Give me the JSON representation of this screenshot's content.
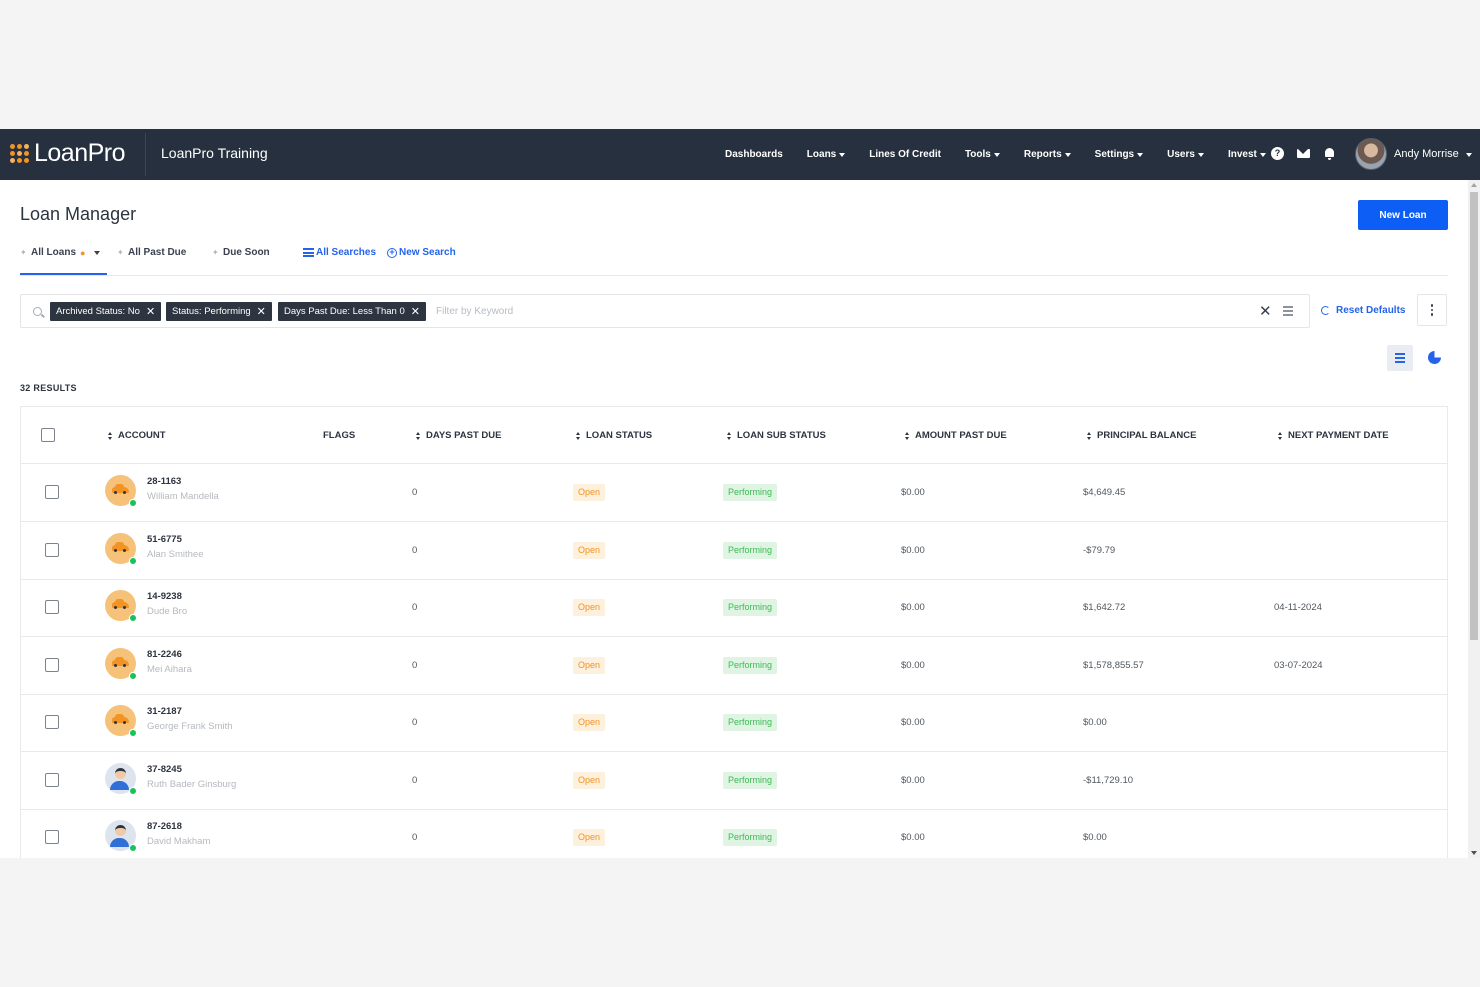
{
  "topbar": {
    "logo_text": "LoanPro",
    "tenant": "LoanPro Training",
    "nav": [
      {
        "label": "Dashboards",
        "caret": false
      },
      {
        "label": "Loans",
        "caret": true
      },
      {
        "label": "Lines Of Credit",
        "caret": false
      },
      {
        "label": "Tools",
        "caret": true
      },
      {
        "label": "Reports",
        "caret": true
      },
      {
        "label": "Settings",
        "caret": true
      },
      {
        "label": "Users",
        "caret": true
      },
      {
        "label": "Invest",
        "caret": true
      }
    ],
    "help_glyph": "?",
    "user_name": "Andy Morrise"
  },
  "page": {
    "title": "Loan Manager",
    "new_loan_label": "New Loan",
    "tabs": {
      "all_loans": "All Loans",
      "all_past_due": "All Past Due",
      "due_soon": "Due Soon",
      "all_searches": "All Searches",
      "new_search": "New Search"
    },
    "filters": {
      "chips": [
        "Archived Status: No",
        "Status: Performing",
        "Days Past Due: Less Than 0"
      ],
      "keyword_placeholder": "Filter by Keyword",
      "reset_label": "Reset Defaults"
    },
    "results_label": "32 RESULTS"
  },
  "table": {
    "columns": {
      "account": "ACCOUNT",
      "flags": "FLAGS",
      "days_past_due": "DAYS PAST DUE",
      "loan_status": "LOAN STATUS",
      "loan_sub_status": "LOAN SUB STATUS",
      "amount_past_due": "AMOUNT PAST DUE",
      "principal_balance": "PRINCIPAL BALANCE",
      "next_payment_date": "NEXT PAYMENT DATE"
    },
    "rows": [
      {
        "account": "28-1163",
        "name": "William Mandella",
        "avatar": "car",
        "days_past_due": "0",
        "status": "Open",
        "sub_status": "Performing",
        "amount_past_due": "$0.00",
        "principal_balance": "$4,649.45",
        "next_payment_date": ""
      },
      {
        "account": "51-6775",
        "name": "Alan Smithee",
        "avatar": "car",
        "days_past_due": "0",
        "status": "Open",
        "sub_status": "Performing",
        "amount_past_due": "$0.00",
        "principal_balance": "-$79.79",
        "next_payment_date": ""
      },
      {
        "account": "14-9238",
        "name": "Dude Bro",
        "avatar": "car",
        "days_past_due": "0",
        "status": "Open",
        "sub_status": "Performing",
        "amount_past_due": "$0.00",
        "principal_balance": "$1,642.72",
        "next_payment_date": "04-11-2024"
      },
      {
        "account": "81-2246",
        "name": "Mei Aihara",
        "avatar": "car",
        "days_past_due": "0",
        "status": "Open",
        "sub_status": "Performing",
        "amount_past_due": "$0.00",
        "principal_balance": "$1,578,855.57",
        "next_payment_date": "03-07-2024"
      },
      {
        "account": "31-2187",
        "name": "George Frank Smith",
        "avatar": "car",
        "days_past_due": "0",
        "status": "Open",
        "sub_status": "Performing",
        "amount_past_due": "$0.00",
        "principal_balance": "$0.00",
        "next_payment_date": ""
      },
      {
        "account": "37-8245",
        "name": "Ruth Bader Ginsburg",
        "avatar": "person",
        "days_past_due": "0",
        "status": "Open",
        "sub_status": "Performing",
        "amount_past_due": "$0.00",
        "principal_balance": "-$11,729.10",
        "next_payment_date": ""
      },
      {
        "account": "87-2618",
        "name": "David Makham",
        "avatar": "person",
        "days_past_due": "0",
        "status": "Open",
        "sub_status": "Performing",
        "amount_past_due": "$0.00",
        "principal_balance": "$0.00",
        "next_payment_date": ""
      }
    ]
  }
}
